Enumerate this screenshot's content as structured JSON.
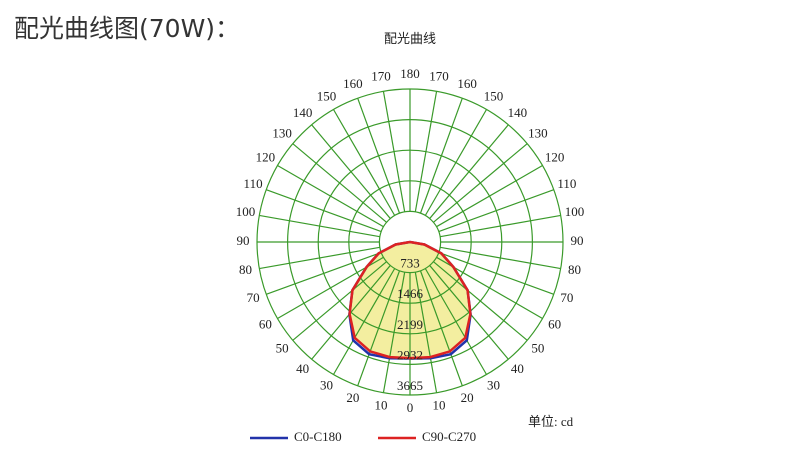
{
  "page_title": "配光曲线图(70W)：",
  "chart_data": {
    "type": "polar",
    "title": "配光曲线",
    "unit_label": "单位: cd",
    "angles": [
      0,
      10,
      20,
      30,
      40,
      50,
      60,
      70,
      80,
      90
    ],
    "series": [
      {
        "name": "C0-C180",
        "color": "#2233aa",
        "values": [
          2790,
          2830,
          2860,
          2720,
          2260,
          1800,
          1200,
          800,
          350,
          0
        ]
      },
      {
        "name": "C90-C270",
        "color": "#dd2222",
        "values": [
          2780,
          2800,
          2790,
          2650,
          2250,
          1800,
          1200,
          800,
          350,
          0
        ]
      }
    ],
    "fill_color": "#f3eea0",
    "rlim": [
      0,
      3665
    ],
    "rticks": [
      733,
      1466,
      2199,
      2932,
      3665
    ],
    "angle_ticks": [
      0,
      10,
      20,
      30,
      40,
      50,
      60,
      70,
      80,
      90,
      100,
      110,
      120,
      130,
      140,
      150,
      160,
      170,
      180
    ],
    "grid_color": "#3a9a2a"
  }
}
